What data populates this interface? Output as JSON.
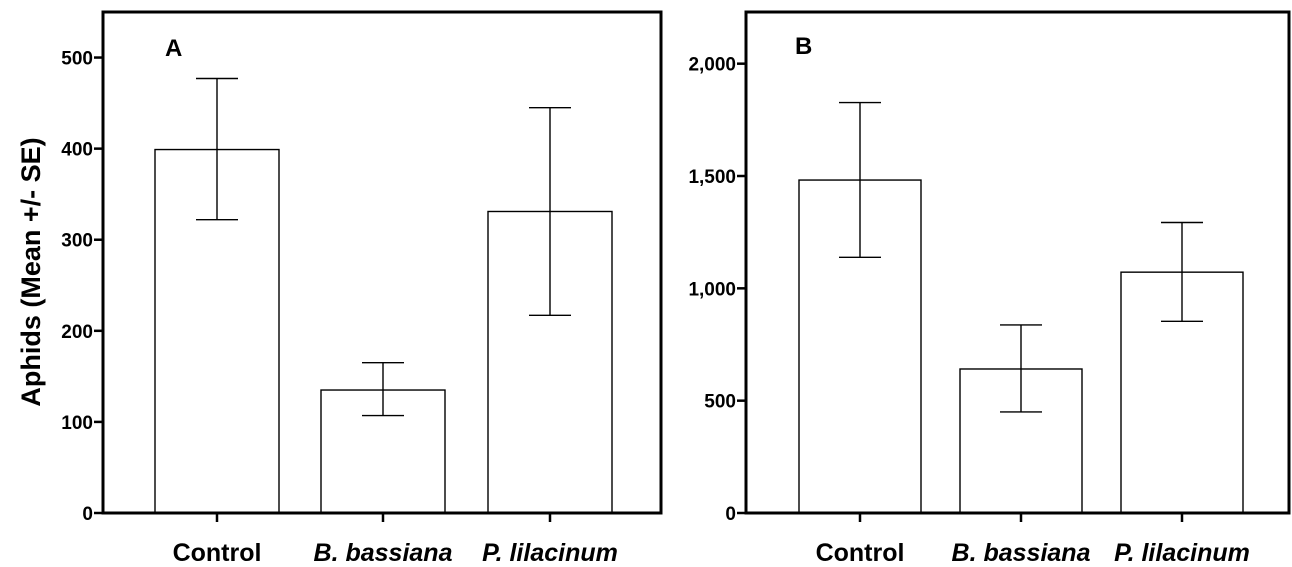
{
  "chart_data": [
    {
      "type": "bar",
      "panel_label": "A",
      "ylabel": "Aphids (Mean +/- SE)",
      "categories": [
        "Control",
        "B. bassiana",
        "P. lilacinum"
      ],
      "values": [
        399,
        135,
        331
      ],
      "error_low": [
        322,
        107,
        217
      ],
      "error_high": [
        477,
        165,
        445
      ],
      "ylim": [
        0,
        550
      ],
      "yticks": [
        0,
        100,
        200,
        300,
        400,
        500
      ],
      "ytick_labels": [
        "0",
        "100",
        "200",
        "300",
        "400",
        "500"
      ],
      "grid": false
    },
    {
      "type": "bar",
      "panel_label": "B",
      "ylabel": "",
      "categories": [
        "Control",
        "B. bassiana",
        "P. lilacinum"
      ],
      "values": [
        1482,
        641,
        1072
      ],
      "error_low": [
        1138,
        450,
        853
      ],
      "error_high": [
        1827,
        837,
        1293
      ],
      "ylim": [
        0,
        2230
      ],
      "yticks": [
        0,
        500,
        1000,
        1500,
        2000
      ],
      "ytick_labels": [
        "0",
        "500",
        "1,000",
        "1,500",
        "2,000"
      ],
      "grid": false
    }
  ]
}
